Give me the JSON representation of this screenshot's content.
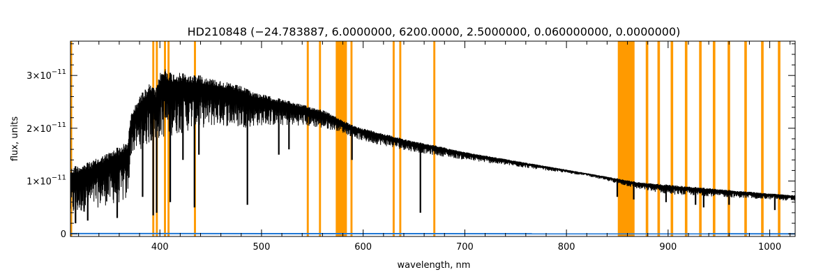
{
  "chart_data": {
    "type": "line",
    "title": "HD210848   (−24.783887, 6.0000000, 6200.0000, 2.5000000, 0.060000000, 0.0000000)",
    "xlabel": "wavelength, nm",
    "ylabel": "flux, units",
    "xlim": [
      312,
      1025
    ],
    "ylim": [
      -5e-13,
      3.65e-11
    ],
    "x_ticks": [
      400,
      500,
      600,
      700,
      800,
      900,
      1000
    ],
    "x_tick_labels": [
      "400",
      "500",
      "600",
      "700",
      "800",
      "900",
      "1000"
    ],
    "y_ticks": [
      0,
      1e-11,
      2e-11,
      3e-11
    ],
    "y_tick_mantissas": [
      "0",
      "1",
      "2",
      "3"
    ],
    "y_tick_power_base": "×10",
    "y_tick_exponent": "−11",
    "series": [
      {
        "color": "#000000",
        "kind": "spectrum",
        "points": [
          [
            312,
            1.25e-11
          ],
          [
            320,
            1.3e-11
          ],
          [
            330,
            1.35e-11
          ],
          [
            340,
            1.45e-11
          ],
          [
            350,
            1.55e-11
          ],
          [
            360,
            1.65e-11
          ],
          [
            368,
            1.75e-11
          ],
          [
            372,
            2.3e-11
          ],
          [
            380,
            2.6e-11
          ],
          [
            390,
            2.85e-11
          ],
          [
            396,
            2.7e-11
          ],
          [
            400,
            3.05e-11
          ],
          [
            405,
            3.15e-11
          ],
          [
            410,
            3.05e-11
          ],
          [
            420,
            3.05e-11
          ],
          [
            430,
            3e-11
          ],
          [
            440,
            3e-11
          ],
          [
            450,
            2.95e-11
          ],
          [
            460,
            2.9e-11
          ],
          [
            470,
            2.85e-11
          ],
          [
            480,
            2.8e-11
          ],
          [
            490,
            2.7e-11
          ],
          [
            500,
            2.65e-11
          ],
          [
            520,
            2.55e-11
          ],
          [
            540,
            2.45e-11
          ],
          [
            560,
            2.35e-11
          ],
          [
            575,
            2.2e-11
          ],
          [
            590,
            2.05e-11
          ],
          [
            610,
            1.95e-11
          ],
          [
            630,
            1.85e-11
          ],
          [
            650,
            1.75e-11
          ],
          [
            670,
            1.68e-11
          ],
          [
            700,
            1.55e-11
          ],
          [
            730,
            1.45e-11
          ],
          [
            760,
            1.35e-11
          ],
          [
            790,
            1.25e-11
          ],
          [
            820,
            1.15e-11
          ],
          [
            850,
            1.05e-11
          ],
          [
            870,
            9.8e-12
          ],
          [
            900,
            9.3e-12
          ],
          [
            930,
            8.8e-12
          ],
          [
            960,
            8.3e-12
          ],
          [
            990,
            7.8e-12
          ],
          [
            1010,
            7.5e-12
          ],
          [
            1025,
            7.3e-12
          ]
        ],
        "lower_envelope": [
          [
            312,
            3e-12
          ],
          [
            330,
            4.5e-12
          ],
          [
            350,
            5.5e-12
          ],
          [
            368,
            6e-12
          ],
          [
            372,
            1.5e-11
          ],
          [
            390,
            1.7e-11
          ],
          [
            400,
            1.8e-11
          ],
          [
            420,
            1.9e-11
          ],
          [
            440,
            2e-11
          ],
          [
            460,
            2.05e-11
          ],
          [
            480,
            2e-11
          ],
          [
            500,
            2.05e-11
          ],
          [
            540,
            2.05e-11
          ],
          [
            575,
            1.95e-11
          ],
          [
            600,
            1.75e-11
          ],
          [
            650,
            1.55e-11
          ],
          [
            700,
            1.4e-11
          ],
          [
            760,
            1.25e-11
          ],
          [
            820,
            1.1e-11
          ],
          [
            850,
            9.5e-12
          ],
          [
            870,
            8.5e-12
          ],
          [
            900,
            7.5e-12
          ],
          [
            950,
            7e-12
          ],
          [
            1000,
            6.5e-12
          ],
          [
            1025,
            6.2e-12
          ]
        ],
        "absorption_lines": [
          [
            317,
            2e-12
          ],
          [
            329,
            2.5e-12
          ],
          [
            358,
            3e-12
          ],
          [
            383,
            7e-12
          ],
          [
            393.4,
            3.5e-12
          ],
          [
            396.8,
            4e-12
          ],
          [
            410.2,
            6e-12
          ],
          [
            422.7,
            1.4e-11
          ],
          [
            434.0,
            5e-12
          ],
          [
            438.4,
            1.5e-11
          ],
          [
            486.1,
            5.5e-12
          ],
          [
            517.0,
            1.5e-11
          ],
          [
            527.0,
            1.6e-11
          ],
          [
            589.0,
            1.4e-11
          ],
          [
            656.3,
            4e-12
          ],
          [
            850.0,
            7e-12
          ],
          [
            866.2,
            6.5e-12
          ],
          [
            898,
            6e-12
          ],
          [
            927,
            5.5e-12
          ],
          [
            935,
            5e-12
          ],
          [
            960,
            5.5e-12
          ],
          [
            1005,
            4.5e-12
          ]
        ]
      },
      {
        "color": "#1f77d4",
        "kind": "baseline",
        "points": [
          [
            312,
            5e-14
          ],
          [
            1025,
            0.0
          ]
        ]
      }
    ],
    "masked_regions": [
      [
        312,
        313.5
      ],
      [
        392.5,
        394.5
      ],
      [
        396.0,
        398.0
      ],
      [
        404.0,
        406.0
      ],
      [
        407.5,
        409.5
      ],
      [
        433.5,
        435.5
      ],
      [
        544.5,
        546.5
      ],
      [
        556.5,
        558.5
      ],
      [
        573.0,
        584.0
      ],
      [
        587.5,
        589.5
      ],
      [
        629.0,
        631.0
      ],
      [
        635.5,
        637.5
      ],
      [
        669.0,
        671.0
      ],
      [
        850.5,
        867.0
      ],
      [
        878.0,
        880.5
      ],
      [
        889.5,
        892.0
      ],
      [
        902.5,
        905.0
      ],
      [
        916.5,
        919.0
      ],
      [
        930.5,
        933.0
      ],
      [
        944.0,
        946.5
      ],
      [
        958.5,
        961.0
      ],
      [
        975.0,
        977.5
      ],
      [
        991.5,
        994.0
      ],
      [
        1008.0,
        1010.5
      ]
    ],
    "colors": {
      "spectrum": "#000000",
      "masks": "#ff9a00",
      "baseline": "#1f77d4",
      "axes": "#000000"
    },
    "grid": false,
    "legend": "none"
  }
}
